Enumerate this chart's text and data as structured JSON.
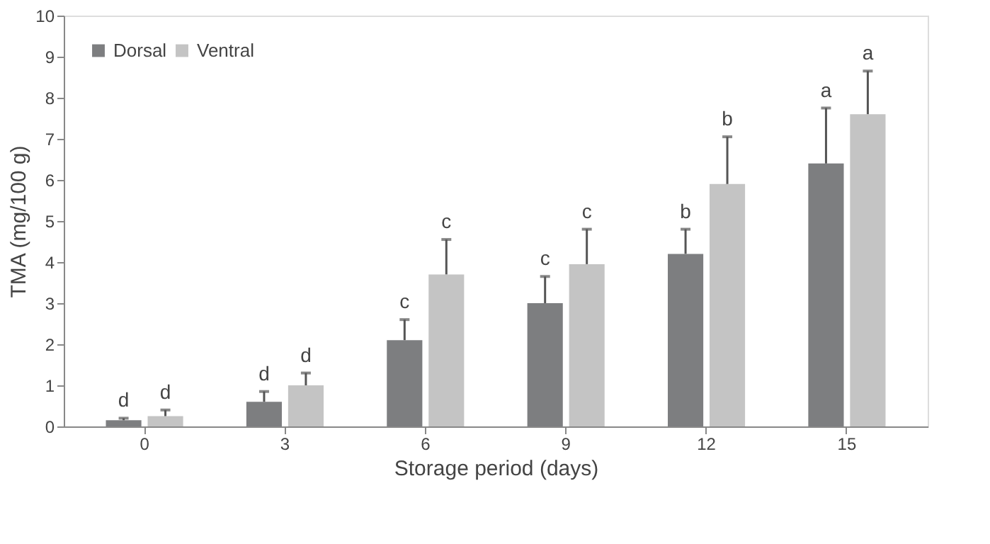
{
  "chart_data": {
    "type": "bar",
    "xlabel": "Storage period (days)",
    "ylabel": "TMA (mg/100 g)",
    "categories": [
      "0",
      "3",
      "6",
      "9",
      "12",
      "15"
    ],
    "series": [
      {
        "name": "Dorsal",
        "color": "#7d7e80",
        "values": [
          0.15,
          0.6,
          2.1,
          3.0,
          4.2,
          6.4
        ],
        "errors": [
          0.05,
          0.25,
          0.5,
          0.65,
          0.6,
          1.35
        ],
        "value_labels": [
          "d",
          "d",
          "c",
          "c",
          "b",
          "a"
        ]
      },
      {
        "name": "Ventral",
        "color": "#c4c4c4",
        "values": [
          0.25,
          1.0,
          3.7,
          3.95,
          5.9,
          7.6
        ],
        "errors": [
          0.15,
          0.3,
          0.85,
          0.85,
          1.15,
          1.05
        ],
        "value_labels": [
          "d",
          "d",
          "c",
          "c",
          "b",
          "a"
        ]
      }
    ],
    "ylim": [
      0,
      10
    ],
    "yticks": [
      0,
      1,
      2,
      3,
      4,
      5,
      6,
      7,
      8,
      9,
      10
    ],
    "grid": false,
    "legend": "top left"
  }
}
